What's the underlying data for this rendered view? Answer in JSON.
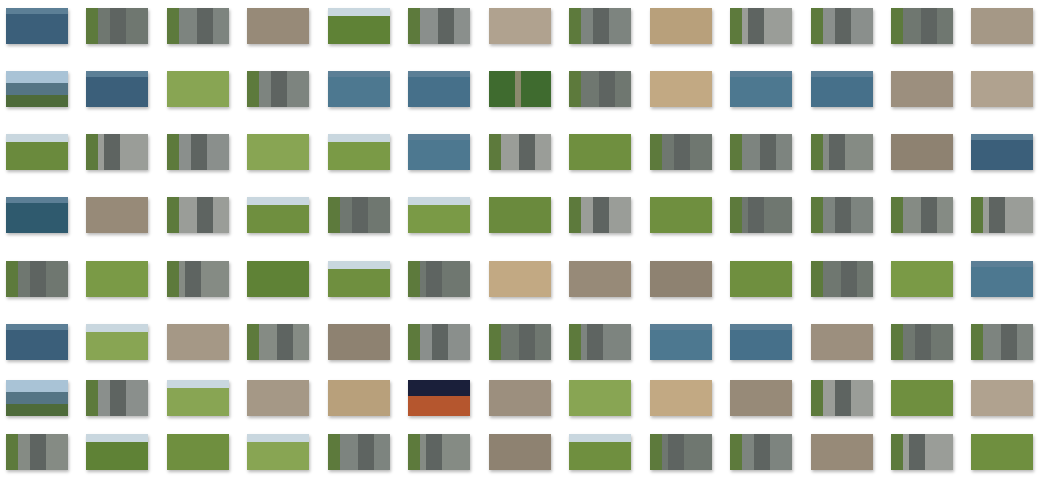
{
  "gallery": {
    "view": "large-icons",
    "columns": 13,
    "rows": 8,
    "thumbnails": [
      [
        "water",
        "road",
        "road",
        "ground",
        "field",
        "road",
        "ground",
        "road",
        "sand",
        "road",
        "road",
        "road",
        "ground"
      ],
      [
        "coast",
        "water",
        "field",
        "road",
        "water",
        "water",
        "trees",
        "road",
        "sand",
        "water",
        "water",
        "ground",
        "ground"
      ],
      [
        "field",
        "road",
        "road",
        "field",
        "field",
        "water",
        "road",
        "field",
        "road",
        "road",
        "road",
        "ground",
        "water"
      ],
      [
        "water",
        "ground",
        "road",
        "field",
        "road",
        "field",
        "field",
        "road",
        "field",
        "road",
        "road",
        "road",
        "road"
      ],
      [
        "road",
        "field",
        "road",
        "field",
        "field",
        "road",
        "sand",
        "ground",
        "ground",
        "field",
        "road",
        "field",
        "water"
      ],
      [
        "water",
        "field",
        "ground",
        "road",
        "ground",
        "road",
        "road",
        "road",
        "water",
        "water",
        "ground",
        "road",
        "road"
      ],
      [
        "coast",
        "road",
        "field",
        "ground",
        "sand",
        "night",
        "ground",
        "field",
        "sand",
        "ground",
        "road",
        "field",
        "ground"
      ],
      [
        "road",
        "field",
        "field",
        "field",
        "road",
        "road",
        "ground",
        "field",
        "road",
        "road",
        "ground",
        "road",
        "field"
      ]
    ]
  }
}
